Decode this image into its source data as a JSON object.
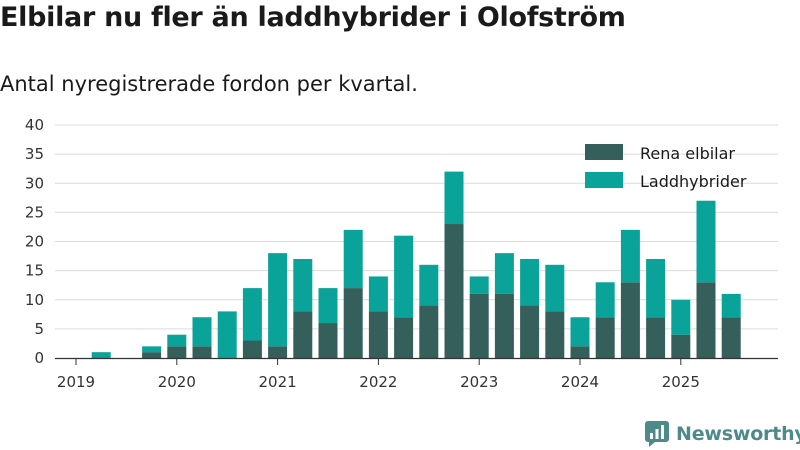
{
  "header": {
    "title": "Elbilar nu fler än laddhybrider i Olofström",
    "subtitle": "Antal nyregistrerade fordon per kvartal."
  },
  "brand": {
    "name": "Newsworthy"
  },
  "colors": {
    "elbilar": "#345f5a",
    "laddhybrider": "#0aa39a",
    "grid": "#dcdcdc",
    "axis": "#333333"
  },
  "chart_data": {
    "type": "bar",
    "stacked": true,
    "title": "Elbilar nu fler än laddhybrider i Olofström",
    "subtitle": "Antal nyregistrerade fordon per kvartal.",
    "xlabel": "",
    "ylabel": "",
    "ylim": [
      0,
      40
    ],
    "yticks": [
      0,
      5,
      10,
      15,
      20,
      25,
      30,
      35,
      40
    ],
    "grid": true,
    "legend_position": "top-right",
    "categories": [
      "2019 K1",
      "2019 K2",
      "2019 K3",
      "2019 K4",
      "2020 K1",
      "2020 K2",
      "2020 K3",
      "2020 K4",
      "2021 K1",
      "2021 K2",
      "2021 K3",
      "2021 K4",
      "2022 K1",
      "2022 K2",
      "2022 K3",
      "2022 K4",
      "2023 K1",
      "2023 K2",
      "2023 K3",
      "2023 K4",
      "2024 K1",
      "2024 K2",
      "2024 K3",
      "2024 K4",
      "2025 K1",
      "2025 K2",
      "2025 K3"
    ],
    "x_tick_labels": [
      "2019",
      "2020",
      "2021",
      "2022",
      "2023",
      "2024",
      "2025"
    ],
    "series": [
      {
        "name": "Rena elbilar",
        "values": [
          0,
          0,
          0,
          1,
          2,
          2,
          0,
          3,
          2,
          8,
          6,
          12,
          8,
          7,
          9,
          23,
          11,
          11,
          9,
          8,
          2,
          7,
          13,
          7,
          4,
          13,
          7
        ]
      },
      {
        "name": "Laddhybrider",
        "values": [
          0,
          1,
          0,
          1,
          2,
          5,
          8,
          9,
          16,
          9,
          6,
          10,
          6,
          14,
          7,
          9,
          3,
          7,
          8,
          8,
          5,
          6,
          9,
          10,
          6,
          14,
          4
        ]
      }
    ]
  }
}
